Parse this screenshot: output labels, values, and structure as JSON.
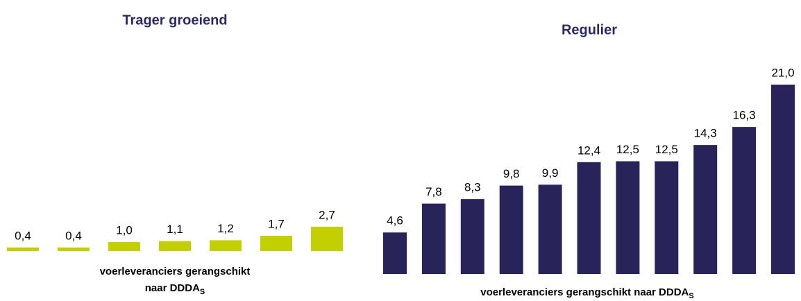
{
  "chart_data": [
    {
      "type": "bar",
      "title": "Trager groeiend",
      "categories": [
        null,
        null,
        null,
        null,
        null,
        null,
        null
      ],
      "values": [
        0.4,
        0.4,
        1.0,
        1.1,
        1.2,
        1.7,
        2.7
      ],
      "value_labels": [
        "0,4",
        "0,4",
        "1,0",
        "1,1",
        "1,2",
        "1,7",
        "2,7"
      ],
      "color": "#c3cf00",
      "ylim": [
        0,
        21
      ],
      "x_label": [
        "voerleveranciers gerangschikt",
        "naar DDDA"
      ],
      "x_label_subscript": "S"
    },
    {
      "type": "bar",
      "title": "Regulier",
      "categories": [
        null,
        null,
        null,
        null,
        null,
        null,
        null,
        null,
        null,
        null,
        null
      ],
      "values": [
        4.6,
        7.8,
        8.3,
        9.8,
        9.9,
        12.4,
        12.5,
        12.5,
        14.3,
        16.3,
        21.0
      ],
      "value_labels": [
        "4,6",
        "7,8",
        "8,3",
        "9,8",
        "9,9",
        "12,4",
        "12,5",
        "12,5",
        "14,3",
        "16,3",
        "21,0"
      ],
      "color": "#28245a",
      "ylim": [
        0,
        21
      ],
      "x_label": [
        "voerleveranciers gerangschikt naar DDDA"
      ],
      "x_label_subscript": "S"
    }
  ]
}
